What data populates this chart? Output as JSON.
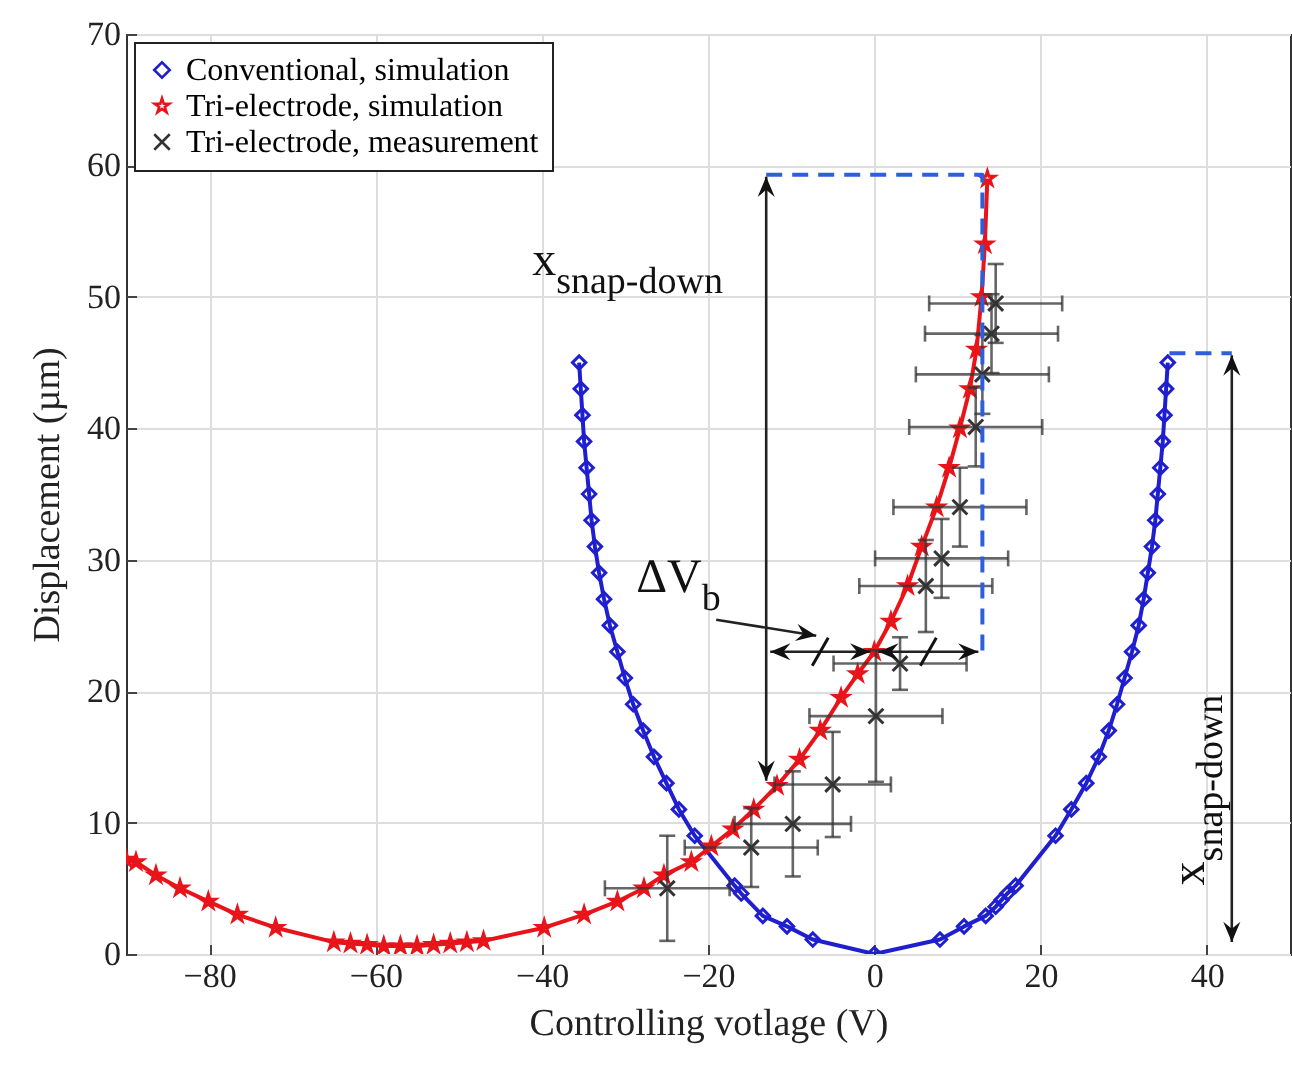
{
  "chart_data": {
    "type": "line",
    "xlabel": "Controlling votlage (V)",
    "ylabel": "Displacement (µm)",
    "xlim": [
      -90,
      50
    ],
    "ylim": [
      0,
      70
    ],
    "xticks": [
      -80,
      -60,
      -40,
      -20,
      0,
      20,
      40
    ],
    "yticks": [
      0,
      10,
      20,
      30,
      40,
      50,
      60,
      70
    ],
    "grid": true,
    "legend": "top left",
    "series": [
      {
        "name": "Conventional, simulation",
        "type": "line",
        "color": "#1f1fd0",
        "marker": "diamond",
        "line_style": "solid",
        "x": [
          -35.5,
          -35.3,
          -35.1,
          -34.9,
          -34.6,
          -34.3,
          -34,
          -33.6,
          -33.1,
          -32.5,
          -31.8,
          -30.9,
          -30,
          -29,
          -27.8,
          -26.5,
          -25,
          -23.5,
          -21.6,
          -16.8,
          -16,
          -13.4,
          -10.5,
          -7.4,
          0,
          7.9,
          10.8,
          13.4,
          14.6,
          15.3,
          16,
          17,
          21.8,
          23.7,
          25.5,
          27,
          28.2,
          29.2,
          30.1,
          31,
          31.8,
          32.4,
          32.9,
          33.4,
          33.8,
          34.1,
          34.4,
          34.7,
          34.9,
          35.1,
          35.3
        ],
        "values": [
          45,
          43,
          41,
          39,
          37,
          35,
          33,
          31,
          29,
          27,
          25,
          23,
          21,
          19,
          17,
          15,
          13,
          11,
          9,
          5.2,
          4.6,
          2.9,
          2.1,
          1.1,
          0,
          1.1,
          2.1,
          2.9,
          3.6,
          4.1,
          4.6,
          5.2,
          9,
          11,
          13,
          15,
          17,
          19,
          21,
          23,
          25,
          27,
          29,
          31,
          33,
          35,
          37,
          39,
          41,
          43,
          45
        ]
      },
      {
        "name": "Tri-electrode, simulation",
        "type": "line",
        "color": "#e8141a",
        "marker": "star",
        "line_style": "solid",
        "x": [
          -90,
          -88.8,
          -86.4,
          -83.5,
          -80.1,
          -76.6,
          -72,
          -65,
          -63,
          -61,
          -59,
          -57,
          -55,
          -53,
          -51,
          -49,
          -47,
          -39.7,
          -34.9,
          -30.9,
          -27.7,
          -25.3,
          -22,
          -19.6,
          -17,
          -14.5,
          -11.7,
          -9,
          -6.5,
          -4,
          -2,
          0,
          2,
          4,
          5.7,
          7.5,
          9,
          10.3,
          11.5,
          12.3,
          12.9,
          13.3,
          13.6
        ],
        "values": [
          7.2,
          7,
          6,
          5,
          4,
          3,
          2,
          0.9,
          0.8,
          0.7,
          0.6,
          0.6,
          0.6,
          0.7,
          0.8,
          0.9,
          1,
          2,
          3,
          4,
          5,
          6,
          7,
          8.2,
          9.5,
          11,
          12.8,
          14.8,
          17,
          19.5,
          21.3,
          23,
          25.3,
          28,
          31,
          34,
          37,
          40,
          43,
          46,
          50,
          54,
          59
        ]
      },
      {
        "name": "Tri-electrode, measurement",
        "type": "scatter",
        "color": "#333333",
        "marker": "cross",
        "x": [
          -24.9,
          -14.8,
          -9.8,
          -5,
          0.2,
          3.1,
          6.2,
          8.1,
          10.3,
          12.2,
          13,
          14.1,
          14.6
        ],
        "values": [
          5,
          8.1,
          9.9,
          12.9,
          18.1,
          22.1,
          28,
          30.1,
          34,
          40.1,
          44.1,
          47.2,
          49.5
        ],
        "xerrors": [
          7.5,
          8,
          7,
          7,
          8,
          8,
          8,
          8,
          8,
          8,
          8,
          8,
          8
        ],
        "errors": [
          4,
          3,
          4,
          4,
          5,
          2,
          3.5,
          3,
          3,
          3,
          3,
          3,
          3
        ]
      },
      {
        "type": "line",
        "color": "#2f5fd8",
        "marker": "none",
        "line_style": "dashed",
        "x": [
          -13,
          13,
          13
        ],
        "values": [
          59.3,
          59.3,
          23
        ]
      },
      {
        "type": "line",
        "color": "#2f5fd8",
        "marker": "none",
        "line_style": "dashed",
        "x": [
          35.5,
          43
        ],
        "values": [
          45.7,
          45.7
        ]
      }
    ],
    "annotations": [
      "x$_{snap-down}$",
      "ΔV$_{b}$",
      "x$_{snap-down}$"
    ]
  }
}
